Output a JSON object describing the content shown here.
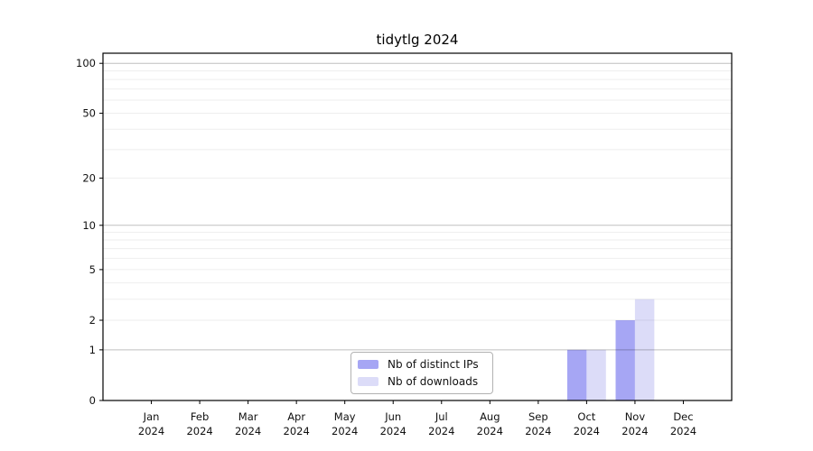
{
  "chart_data": {
    "type": "bar",
    "title": "tidytlg 2024",
    "categories": [
      "Jan",
      "Feb",
      "Mar",
      "Apr",
      "May",
      "Jun",
      "Jul",
      "Aug",
      "Sep",
      "Oct",
      "Nov",
      "Dec"
    ],
    "x_tick_year": "2024",
    "series": [
      {
        "name": "Nb of distinct IPs",
        "color": "#a6a6f4",
        "values": [
          0,
          0,
          0,
          0,
          0,
          0,
          0,
          0,
          0,
          1,
          2,
          0
        ]
      },
      {
        "name": "Nb of downloads",
        "color": "#dcdcf8",
        "values": [
          0,
          0,
          0,
          0,
          0,
          0,
          0,
          0,
          0,
          1,
          3,
          0
        ]
      }
    ],
    "y_scale": "log1p",
    "ylim": [
      0,
      115
    ],
    "y_tick_labels": [
      100,
      50,
      20,
      10,
      5,
      2,
      1,
      0
    ],
    "y_major_gridlines": [
      1,
      10,
      100
    ],
    "y_minor_gridlines": [
      2,
      3,
      4,
      5,
      6,
      7,
      8,
      9,
      20,
      30,
      40,
      50,
      60,
      70,
      80,
      90
    ],
    "grid": true,
    "legend_position": "lower center"
  }
}
